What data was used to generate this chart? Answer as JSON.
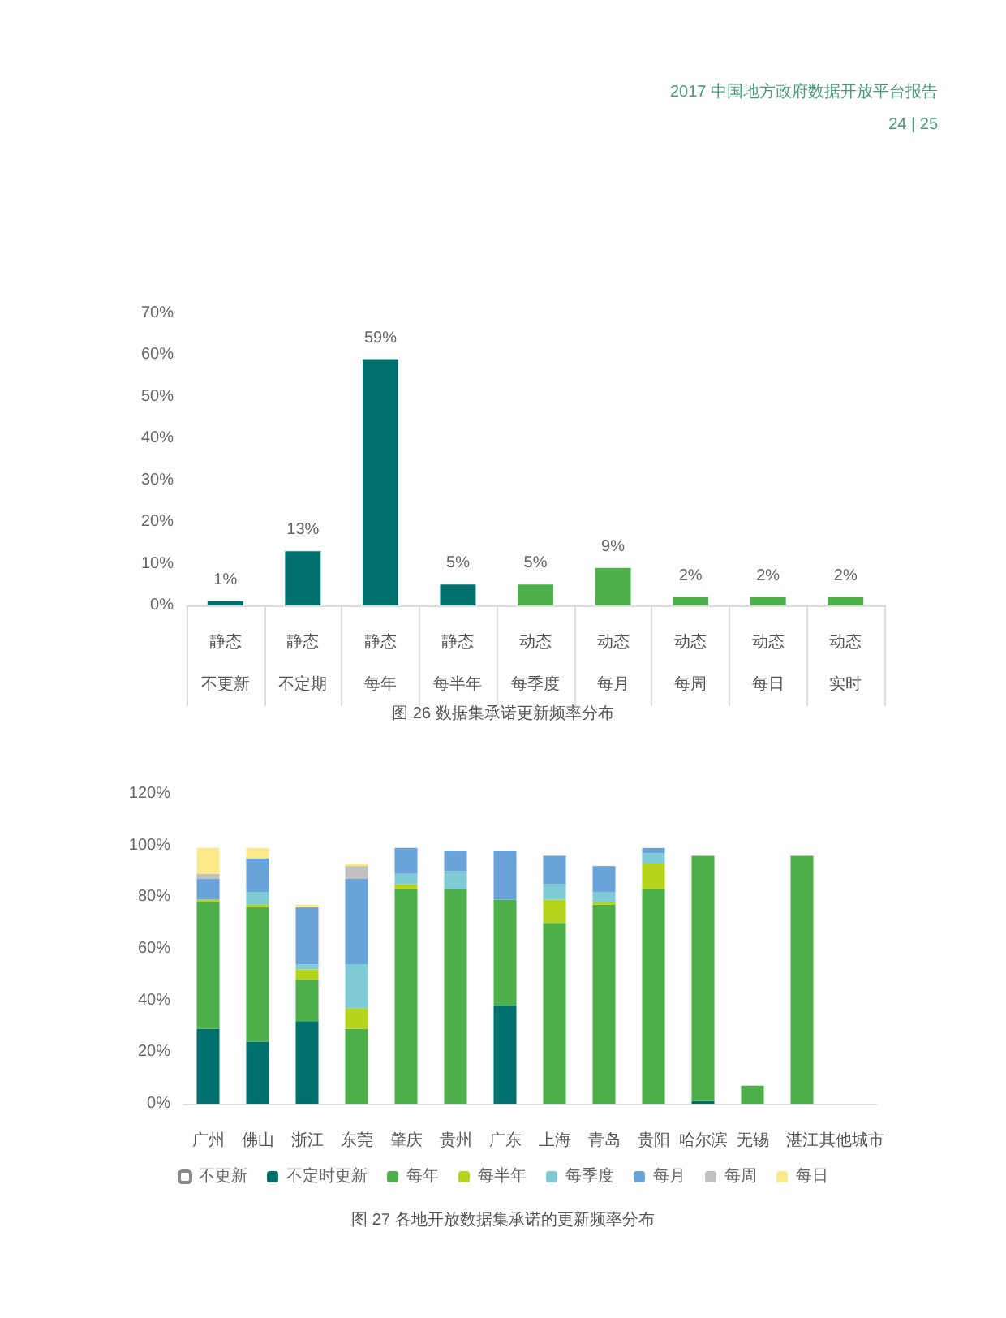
{
  "chart_data": [
    {
      "type": "bar",
      "title": "图 26 数据集承诺更新频率分布",
      "annotations": [
        "2017 中国地方政府数据开放平台报告",
        "24 | 25"
      ],
      "categories": [
        "静态不更新",
        "静态不定期",
        "静态每年",
        "静态每半年",
        "动态每季度",
        "动态每月",
        "动态每周",
        "动态每日",
        "动态实时"
      ],
      "values": [
        1,
        13,
        59,
        5,
        5,
        9,
        2,
        2,
        2
      ],
      "colors": [
        "#00706e",
        "#00706e",
        "#00706e",
        "#00706e",
        "#4db04a",
        "#4db04a",
        "#4db04a",
        "#4db04a",
        "#4db04a"
      ],
      "value_labels": [
        "1%",
        "13%",
        "59%",
        "5%",
        "5%",
        "9%",
        "2%",
        "2%",
        "2%"
      ],
      "ylim": [
        0,
        70
      ],
      "yticks": [
        {
          "value": 0,
          "label": "0%"
        },
        {
          "value": 10,
          "label": "10%"
        },
        {
          "value": 20,
          "label": "20%"
        },
        {
          "value": 30,
          "label": "30%"
        },
        {
          "value": 40,
          "label": "40%"
        },
        {
          "value": 50,
          "label": "50%"
        },
        {
          "value": 60,
          "label": "60%"
        },
        {
          "value": 70,
          "label": "70%"
        }
      ],
      "grid": false
    },
    {
      "type": "bar",
      "title": "图 27 各地开放数据集承诺的更新频率分布",
      "stacked": true,
      "legend": "bottom",
      "categories": [
        "广州",
        "佛山",
        "浙江",
        "东莞",
        "肇庆",
        "贵州",
        "广东",
        "上海",
        "青岛",
        "贵阳",
        "哈尔滨",
        "无锡",
        "湛江",
        "其他城市"
      ],
      "series": [
        {
          "name": "不更新",
          "color": "#ffffff",
          "values": [
            null,
            null,
            null,
            null,
            null,
            null,
            null,
            null,
            null,
            null,
            null,
            null,
            null,
            null
          ]
        },
        {
          "name": "不定时更新",
          "color": "#00706e",
          "values": [
            29,
            24,
            32,
            null,
            null,
            null,
            38,
            null,
            null,
            null,
            1,
            null,
            null,
            null
          ]
        },
        {
          "name": "每年",
          "color": "#4db04a",
          "values": [
            49,
            52,
            16,
            29,
            83,
            83,
            41,
            70,
            77,
            83,
            95,
            7,
            96,
            null
          ]
        },
        {
          "name": "每半年",
          "color": "#b5d31b",
          "values": [
            1,
            1,
            4,
            8,
            2,
            null,
            null,
            9,
            1,
            10,
            null,
            null,
            null,
            null
          ]
        },
        {
          "name": "每季度",
          "color": "#7ecbd6",
          "values": [
            null,
            5,
            2,
            17,
            4,
            7,
            null,
            6,
            4,
            4,
            null,
            null,
            null,
            null
          ]
        },
        {
          "name": "每月",
          "color": "#6aa3d9",
          "values": [
            8,
            13,
            22,
            33,
            10,
            8,
            19,
            11,
            10,
            2,
            null,
            null,
            null,
            null
          ]
        },
        {
          "name": "每周",
          "color": "#c0c0c0",
          "values": [
            2,
            null,
            null,
            5,
            null,
            null,
            null,
            null,
            null,
            null,
            null,
            null,
            null,
            null
          ]
        },
        {
          "name": "每日",
          "color": "#fbe98a",
          "values": [
            10,
            4,
            1,
            1,
            null,
            null,
            null,
            null,
            null,
            null,
            null,
            null,
            null,
            null
          ]
        }
      ],
      "ylim": [
        0,
        120
      ],
      "yticks": [
        {
          "value": 0,
          "label": "0%"
        },
        {
          "value": 20,
          "label": "20%"
        },
        {
          "value": 40,
          "label": "40%"
        },
        {
          "value": 60,
          "label": "60%"
        },
        {
          "value": 80,
          "label": "80%"
        },
        {
          "value": 100,
          "label": "100%"
        },
        {
          "value": 120,
          "label": "120%"
        }
      ],
      "grid": false
    }
  ]
}
